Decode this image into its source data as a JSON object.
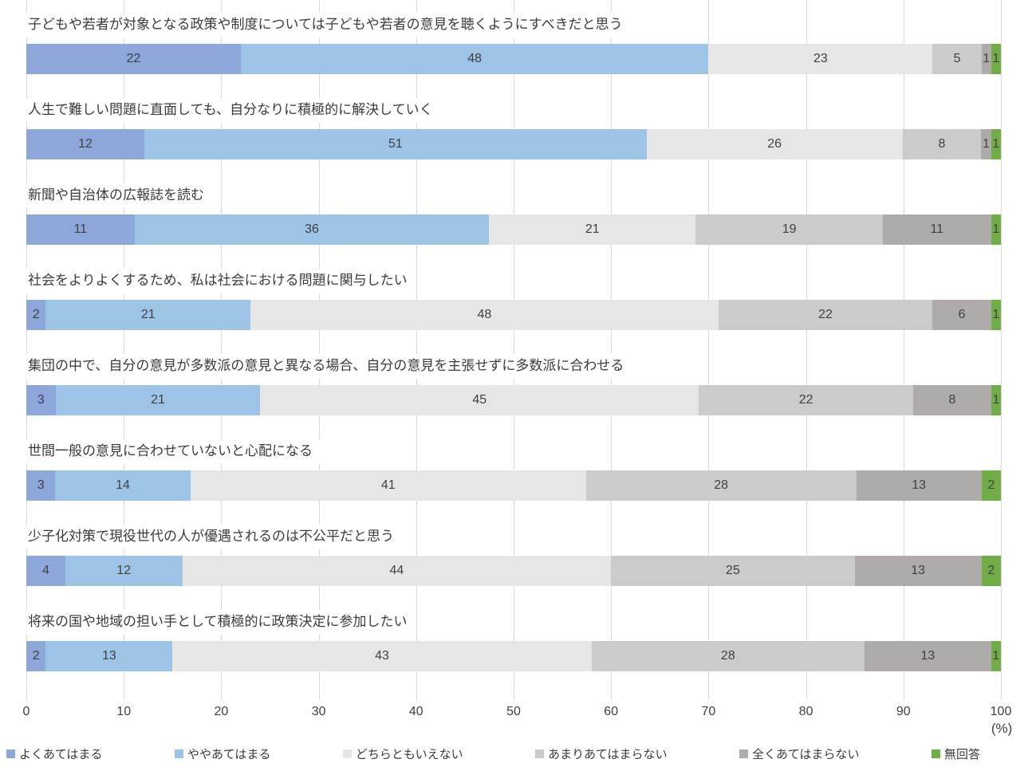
{
  "chart_data": {
    "type": "bar",
    "variant": "horizontal-stacked-100pct",
    "title": "",
    "xlabel": "",
    "ylabel": "",
    "unit_label": "(%)",
    "xlim": [
      0,
      100
    ],
    "x_ticks": [
      0,
      10,
      20,
      30,
      40,
      50,
      60,
      70,
      80,
      90,
      100
    ],
    "grid": "vertical",
    "gridline_color": "#d9d9d9",
    "legend_position": "bottom",
    "categories": [
      "子どもや若者が対象となる政策や制度については子どもや若者の意見を聴くようにすべきだと思う",
      "人生で難しい問題に直面しても、自分なりに積極的に解決していく",
      "新聞や自治体の広報誌を読む",
      "社会をよりよくするため、私は社会における問題に関与したい",
      "集団の中で、自分の意見が多数派の意見と異なる場合、自分の意見を主張せずに多数派に合わせる",
      "世間一般の意見に合わせていないと心配になる",
      "少子化対策で現役世代の人が優遇されるのは不公平だと思う",
      "将来の国や地域の担い手として積極的に政策決定に参加したい"
    ],
    "series": [
      {
        "name": "よくあてはまる",
        "color": "#8da7db",
        "values": [
          22,
          12,
          11,
          2,
          3,
          3,
          4,
          2
        ]
      },
      {
        "name": "ややあてはまる",
        "color": "#9dc3e6",
        "values": [
          48,
          51,
          36,
          21,
          21,
          14,
          12,
          13
        ]
      },
      {
        "name": "どちらともいえない",
        "color": "#e7e6e6",
        "values": [
          23,
          26,
          21,
          48,
          45,
          41,
          44,
          43
        ]
      },
      {
        "name": "あまりあてはまらない",
        "color": "#cbcbcb",
        "values": [
          5,
          8,
          19,
          22,
          22,
          28,
          25,
          28
        ]
      },
      {
        "name": "全くあてはまらない",
        "color": "#afabab",
        "values": [
          1,
          1,
          11,
          6,
          8,
          13,
          13,
          13
        ]
      },
      {
        "name": "無回答",
        "color": "#70ad47",
        "values": [
          1,
          1,
          1,
          1,
          1,
          2,
          2,
          1
        ]
      }
    ]
  }
}
